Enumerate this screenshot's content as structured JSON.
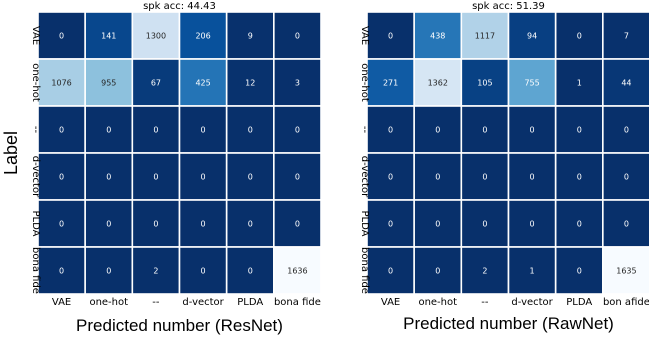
{
  "figure": {
    "ylabel": "Label"
  },
  "chart_data": [
    {
      "type": "heatmap",
      "title": "spk acc: 44.43",
      "xlabel": "Predicted number (ResNet)",
      "ylabel": "Label",
      "x_categories": [
        "VAE",
        "one-hot",
        "--",
        "d-vector",
        "PLDA",
        "bona fide"
      ],
      "y_categories": [
        "VAE",
        "one-hot",
        "--",
        "d-vector",
        "PLDA",
        "bona fide"
      ],
      "values": [
        [
          0,
          141,
          1300,
          206,
          9,
          0
        ],
        [
          1076,
          955,
          67,
          425,
          12,
          3
        ],
        [
          0,
          0,
          0,
          0,
          0,
          0
        ],
        [
          0,
          0,
          0,
          0,
          0,
          0
        ],
        [
          0,
          0,
          0,
          0,
          0,
          0
        ],
        [
          0,
          0,
          2,
          0,
          0,
          1636
        ]
      ],
      "colormap": "Blues_r"
    },
    {
      "type": "heatmap",
      "title": "spk acc: 51.39",
      "xlabel": "Predicted number (RawNet)",
      "ylabel": "",
      "x_categories": [
        "VAE",
        "one-hot",
        "--",
        "d-vector",
        "PLDA",
        "bon afide"
      ],
      "y_categories": [
        "VAE",
        "one-hot",
        "--",
        "d-vector",
        "PLDA",
        "bona fide"
      ],
      "values": [
        [
          0,
          438,
          1117,
          94,
          0,
          7
        ],
        [
          271,
          1362,
          105,
          755,
          1,
          44
        ],
        [
          0,
          0,
          0,
          0,
          0,
          0
        ],
        [
          0,
          0,
          0,
          0,
          0,
          0
        ],
        [
          0,
          0,
          0,
          0,
          0,
          0
        ],
        [
          0,
          0,
          2,
          1,
          0,
          1635
        ]
      ],
      "colormap": "Blues_r"
    }
  ]
}
